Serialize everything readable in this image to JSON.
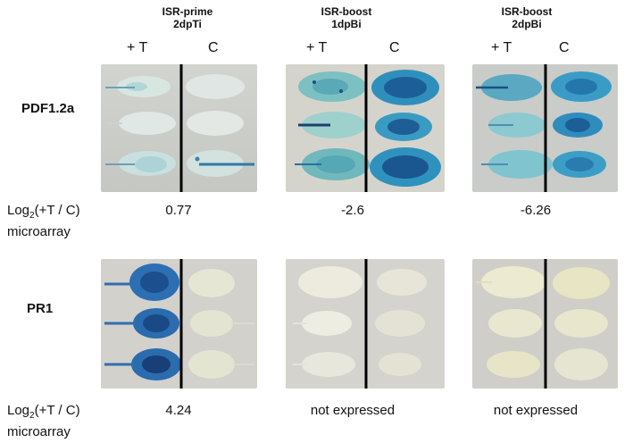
{
  "columns": [
    {
      "title_line1": "ISR-prime",
      "title_line2": "2dpTi",
      "sub_t": "+ T",
      "sub_c": "C"
    },
    {
      "title_line1": "ISR-boost",
      "title_line2": "1dpBi",
      "sub_t": "+ T",
      "sub_c": "C"
    },
    {
      "title_line1": "ISR-boost",
      "title_line2": "2dpBi",
      "sub_t": "+ T",
      "sub_c": "C"
    }
  ],
  "rows": [
    {
      "gene": "PDF1.2a",
      "values": [
        "0.77",
        "-2.6",
        "-6.26"
      ]
    },
    {
      "gene": "PR1",
      "values": [
        "4.24",
        "not expressed",
        "not expressed"
      ]
    }
  ],
  "log_label": {
    "prefix": "Log",
    "subscript": "2",
    "suffix": "(+T / C)",
    "line2": "microarray"
  },
  "colors": {
    "stain_dark": "#1d5fa0",
    "stain_mid": "#3a9ec0",
    "stain_light": "#8fd0d8",
    "panel_bg": "#d7d7d2",
    "leaf_pale": "#ece9d8",
    "divider": "#000000"
  }
}
